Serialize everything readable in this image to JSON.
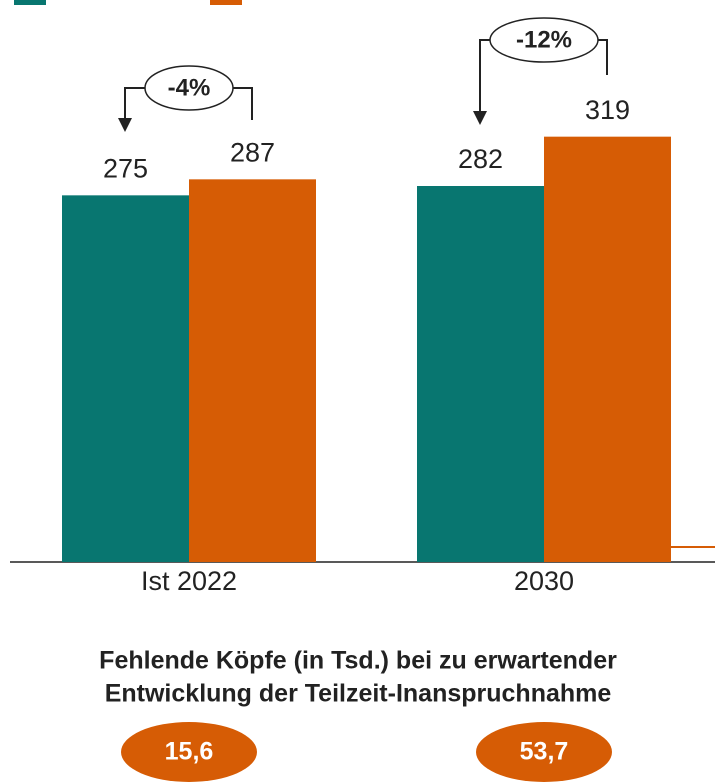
{
  "chart_data": {
    "type": "bar",
    "categories": [
      "Ist 2022",
      "2030"
    ],
    "series": [
      {
        "color": "#087670",
        "values": [
          275,
          282
        ]
      },
      {
        "color": "#d65c05",
        "values": [
          287,
          319
        ]
      }
    ],
    "ylim": [
      0,
      420
    ],
    "annotations": [
      "-4%",
      "-12%"
    ],
    "subtitle": [
      "Fehlende Köpfe (in Tsd.) bei zu erwartender",
      "Entwicklung der Teilzeit-Inanspruchnahme"
    ],
    "bottom_labels": [
      "15,6",
      "53,7"
    ]
  }
}
